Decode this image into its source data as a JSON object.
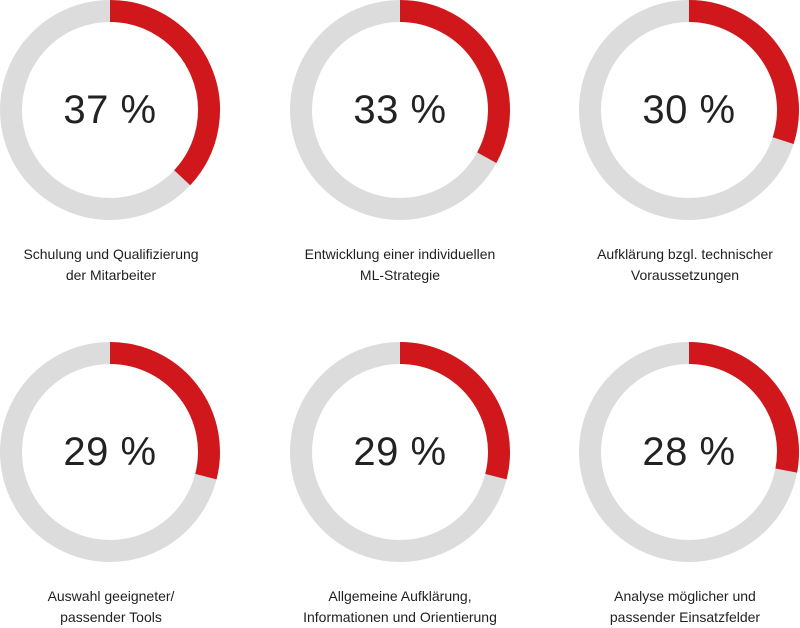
{
  "colors": {
    "accent": "#d0171c",
    "track": "#dcdcdc",
    "text": "#222222"
  },
  "chart_data": [
    {
      "type": "pie",
      "variant": "donut",
      "value": 37,
      "value_label": "37 %",
      "label": "Schulung und Qualifizierung der Mitarbeiter",
      "label_lines": [
        "Schulung und Qualifizierung",
        "der Mitarbeiter"
      ]
    },
    {
      "type": "pie",
      "variant": "donut",
      "value": 33,
      "value_label": "33 %",
      "label": "Entwicklung einer individuellen ML-Strategie",
      "label_lines": [
        "Entwicklung einer individuellen",
        "ML-Strategie"
      ]
    },
    {
      "type": "pie",
      "variant": "donut",
      "value": 30,
      "value_label": "30 %",
      "label": "Aufklärung bzgl. technischer Voraussetzungen",
      "label_lines": [
        "Aufklärung bzgl. technischer",
        "Voraussetzungen"
      ]
    },
    {
      "type": "pie",
      "variant": "donut",
      "value": 29,
      "value_label": "29 %",
      "label": "Auswahl geeigneter/ passender Tools",
      "label_lines": [
        "Auswahl geeigneter/",
        "passender Tools"
      ]
    },
    {
      "type": "pie",
      "variant": "donut",
      "value": 29,
      "value_label": "29 %",
      "label": "Allgemeine Aufklärung, Informationen und Orientierung",
      "label_lines": [
        "Allgemeine Aufklärung,",
        "Informationen und Orientierung"
      ]
    },
    {
      "type": "pie",
      "variant": "donut",
      "value": 28,
      "value_label": "28 %",
      "label": "Analyse möglicher und passender Einsatzfelder",
      "label_lines": [
        "Analyse möglicher und",
        "passender Einsatzfelder"
      ]
    }
  ]
}
